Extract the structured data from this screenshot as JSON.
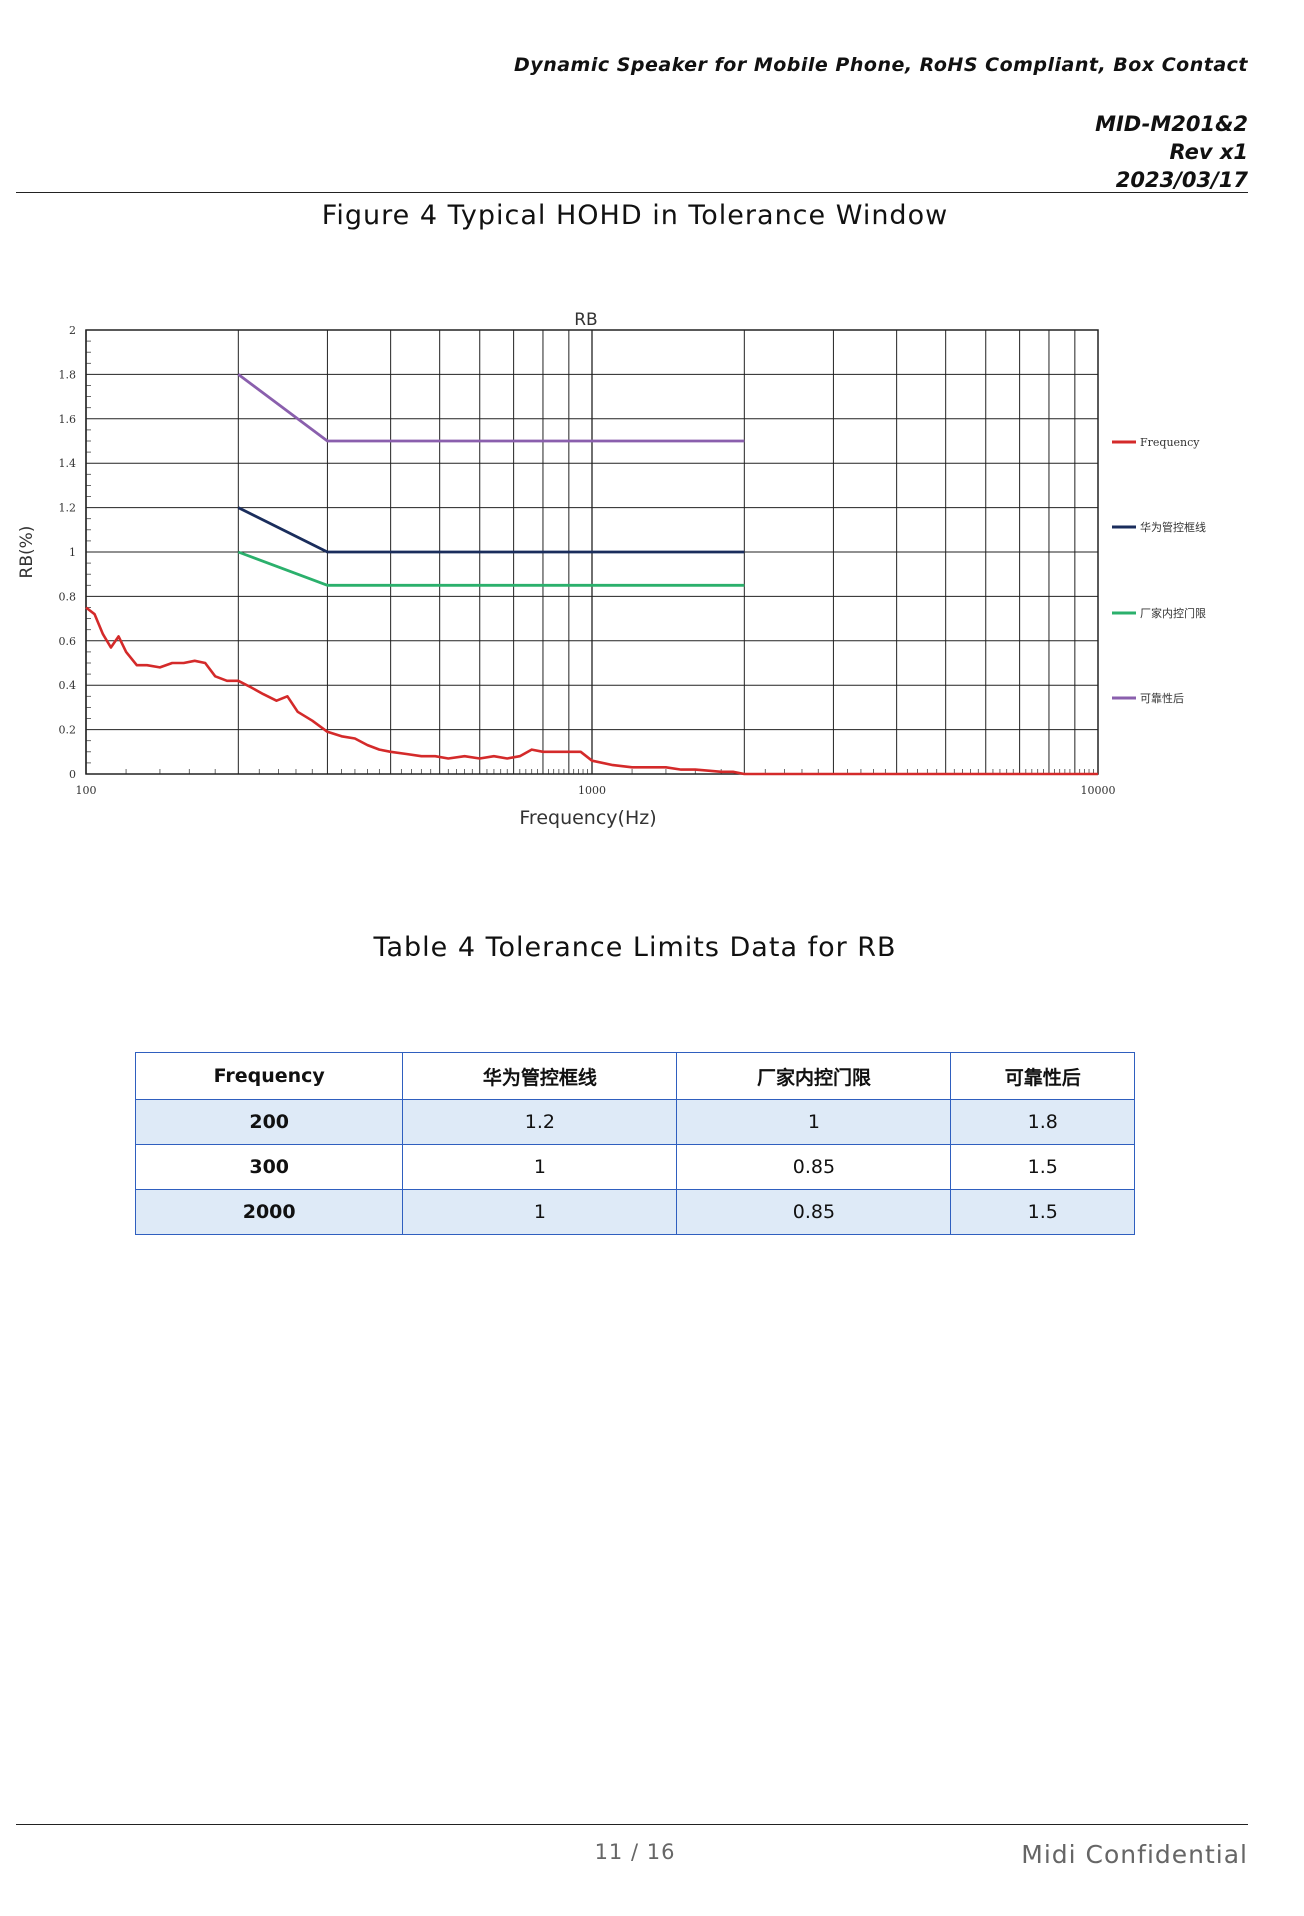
{
  "header": {
    "doc_title": "Dynamic Speaker for Mobile Phone,  RoHS Compliant,  Box Contact",
    "doc_id": "MID-M201&2",
    "revision": "Rev x1",
    "date": "2023/03/17"
  },
  "figure": {
    "caption": "Figure 4 Typical HOHD in Tolerance Window"
  },
  "chart_data": {
    "type": "line",
    "title": "RB",
    "xlabel": "Frequency(Hz)",
    "ylabel": "RB(%)",
    "xscale": "log",
    "xlim": [
      100,
      10000
    ],
    "ylim": [
      0,
      2
    ],
    "grid": true,
    "legend_position": "right",
    "x_tick_labels": [
      "100",
      "1000",
      "10000"
    ],
    "y_tick_labels": [
      "0",
      "0.2",
      "0.4",
      "0.6",
      "0.8",
      "1",
      "1.2",
      "1.4",
      "1.6",
      "1.8",
      "2"
    ],
    "series": [
      {
        "name": "Frequency",
        "color": "#d42a2a",
        "x": [
          100,
          104,
          108,
          112,
          116,
          120,
          126,
          132,
          140,
          148,
          156,
          164,
          172,
          180,
          190,
          200,
          212,
          224,
          238,
          250,
          262,
          280,
          300,
          320,
          340,
          360,
          380,
          400,
          430,
          460,
          490,
          520,
          560,
          600,
          640,
          680,
          720,
          760,
          800,
          850,
          900,
          950,
          1000,
          1100,
          1200,
          1300,
          1400,
          1500,
          1600,
          1700,
          1800,
          1900,
          2000,
          2500,
          3000,
          4000,
          5000,
          6000,
          7000,
          8000,
          9000,
          10000
        ],
        "values": [
          0.75,
          0.72,
          0.63,
          0.57,
          0.62,
          0.55,
          0.49,
          0.49,
          0.48,
          0.5,
          0.5,
          0.51,
          0.5,
          0.44,
          0.42,
          0.42,
          0.39,
          0.36,
          0.33,
          0.35,
          0.28,
          0.24,
          0.19,
          0.17,
          0.16,
          0.13,
          0.11,
          0.1,
          0.09,
          0.08,
          0.08,
          0.07,
          0.08,
          0.07,
          0.08,
          0.07,
          0.08,
          0.11,
          0.1,
          0.1,
          0.1,
          0.1,
          0.06,
          0.04,
          0.03,
          0.03,
          0.03,
          0.02,
          0.02,
          0.015,
          0.01,
          0.01,
          0.0,
          0.0,
          0.0,
          0.0,
          0.0,
          0.0,
          0.0,
          0.0,
          0.0,
          0.0
        ]
      },
      {
        "name": "华为管控框线",
        "color": "#1a2d5c",
        "x": [
          200,
          300,
          2000
        ],
        "values": [
          1.2,
          1,
          1
        ]
      },
      {
        "name": "厂家内控门限",
        "color": "#2bb06c",
        "x": [
          200,
          300,
          2000
        ],
        "values": [
          1,
          0.85,
          0.85
        ]
      },
      {
        "name": "可靠性后",
        "color": "#8a5fad",
        "x": [
          200,
          300,
          2000
        ],
        "values": [
          1.8,
          1.5,
          1.5
        ]
      }
    ]
  },
  "table": {
    "caption": "Table 4 Tolerance Limits Data for RB",
    "headers": [
      "Frequency",
      "华为管控框线",
      "厂家内控门限",
      "可靠性后"
    ],
    "rows": [
      [
        "200",
        "1.2",
        "1",
        "1.8"
      ],
      [
        "300",
        "1",
        "0.85",
        "1.5"
      ],
      [
        "2000",
        "1",
        "0.85",
        "1.5"
      ]
    ]
  },
  "footer": {
    "page": "11 / 16",
    "confidential": "Midi  Confidential"
  }
}
